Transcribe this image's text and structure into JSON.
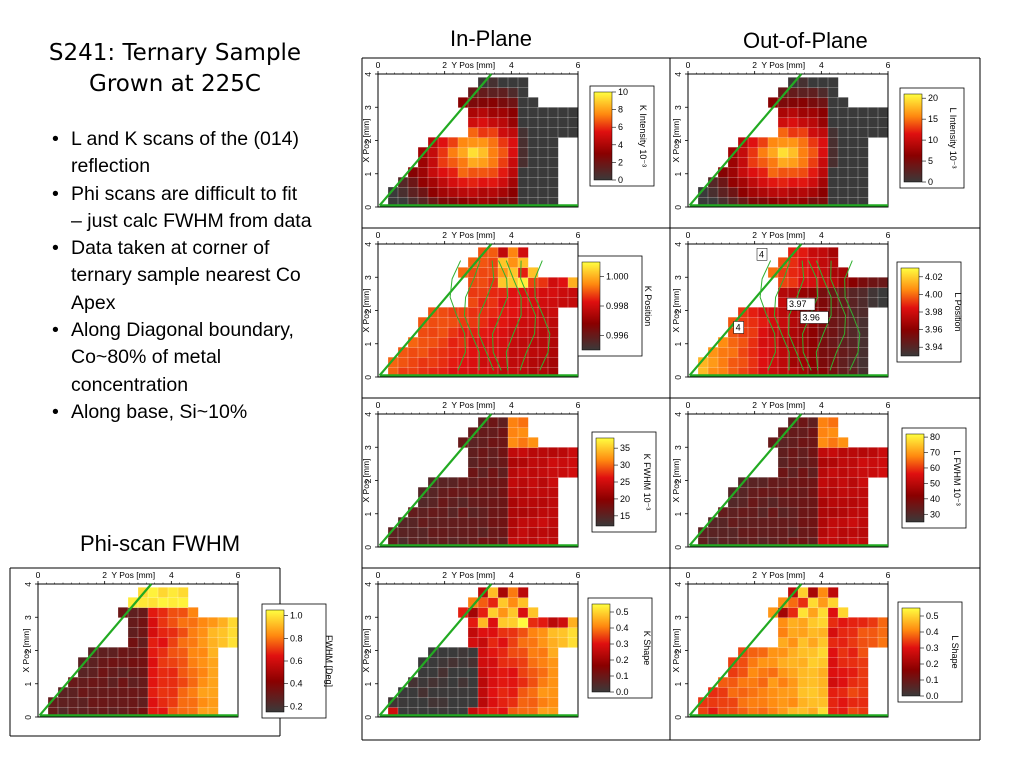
{
  "slide": {
    "title_line1": "S241: Ternary Sample",
    "title_line2": "Grown at 225C",
    "bullets": [
      "L and K scans of the (014) reflection",
      "Phi scans are difficult to fit – just calc FWHM from data",
      "Data taken at corner of ternary sample nearest Co Apex",
      "Along Diagonal boundary, Co~80% of metal concentration",
      "Along base, Si~10%"
    ],
    "col_in_plane": "In-Plane",
    "col_out_plane": "Out-of-Plane",
    "phi_title": "Phi-scan FWHM"
  },
  "axes": {
    "top_label": "Y Pos [mm]",
    "left_label": "X Pos [mm]",
    "x_ticks": [
      "0",
      "2",
      "4",
      "6"
    ],
    "y_ticks": [
      "0",
      "1",
      "2",
      "3",
      "4"
    ],
    "xlim": [
      0,
      6
    ],
    "ylim": [
      0,
      4
    ]
  },
  "chart_data": [
    {
      "id": "k-intensity",
      "type": "heatmap",
      "colorbar_label": "K Intensity 10⁻³",
      "ticks": [
        "0",
        "2",
        "4",
        "6",
        "8",
        "10"
      ],
      "range": [
        0,
        10
      ],
      "pattern": "intensity",
      "colors": {
        "boundary": "#22aa22"
      }
    },
    {
      "id": "l-intensity",
      "type": "heatmap",
      "colorbar_label": "L Intensity 10⁻³",
      "ticks": [
        "0",
        "5",
        "10",
        "15",
        "20"
      ],
      "range": [
        0,
        21
      ],
      "pattern": "intensity",
      "colors": {
        "boundary": "#22aa22"
      }
    },
    {
      "id": "k-position",
      "type": "heatmap",
      "colorbar_label": "K Position",
      "ticks": [
        "0.996",
        "0.998",
        "1.000"
      ],
      "range": [
        0.995,
        1.001
      ],
      "pattern": "kpos",
      "contours": true
    },
    {
      "id": "l-position",
      "type": "heatmap",
      "colorbar_label": "L Position",
      "ticks": [
        "3.94",
        "3.96",
        "3.98",
        "4.00",
        "4.02"
      ],
      "range": [
        3.93,
        4.03
      ],
      "pattern": "lpos",
      "contours": true,
      "contour_labels": [
        "4",
        "4",
        "3.96",
        "3.97"
      ]
    },
    {
      "id": "k-fwhm",
      "type": "heatmap",
      "colorbar_label": "K FWHM 10⁻³",
      "ticks": [
        "15",
        "20",
        "25",
        "30",
        "35"
      ],
      "range": [
        12,
        38
      ],
      "pattern": "fwhm"
    },
    {
      "id": "l-fwhm",
      "type": "heatmap",
      "colorbar_label": "L FWHM 10⁻³",
      "ticks": [
        "30",
        "40",
        "50",
        "60",
        "70",
        "80"
      ],
      "range": [
        25,
        82
      ],
      "pattern": "fwhm"
    },
    {
      "id": "k-shape",
      "type": "heatmap",
      "colorbar_label": "K Shape",
      "ticks": [
        "0.0",
        "0.1",
        "0.2",
        "0.3",
        "0.4",
        "0.5"
      ],
      "range": [
        0,
        0.55
      ],
      "pattern": "kshape"
    },
    {
      "id": "l-shape",
      "type": "heatmap",
      "colorbar_label": "L Shape",
      "ticks": [
        "0.0",
        "0.1",
        "0.2",
        "0.3",
        "0.4",
        "0.5"
      ],
      "range": [
        0,
        0.55
      ],
      "pattern": "lshape"
    },
    {
      "id": "phi-fwhm",
      "type": "heatmap",
      "colorbar_label": "FWHM [Deg]",
      "ticks": [
        "0.2",
        "0.4",
        "0.6",
        "0.8",
        "1.0"
      ],
      "range": [
        0.15,
        1.05
      ],
      "pattern": "phi"
    }
  ]
}
